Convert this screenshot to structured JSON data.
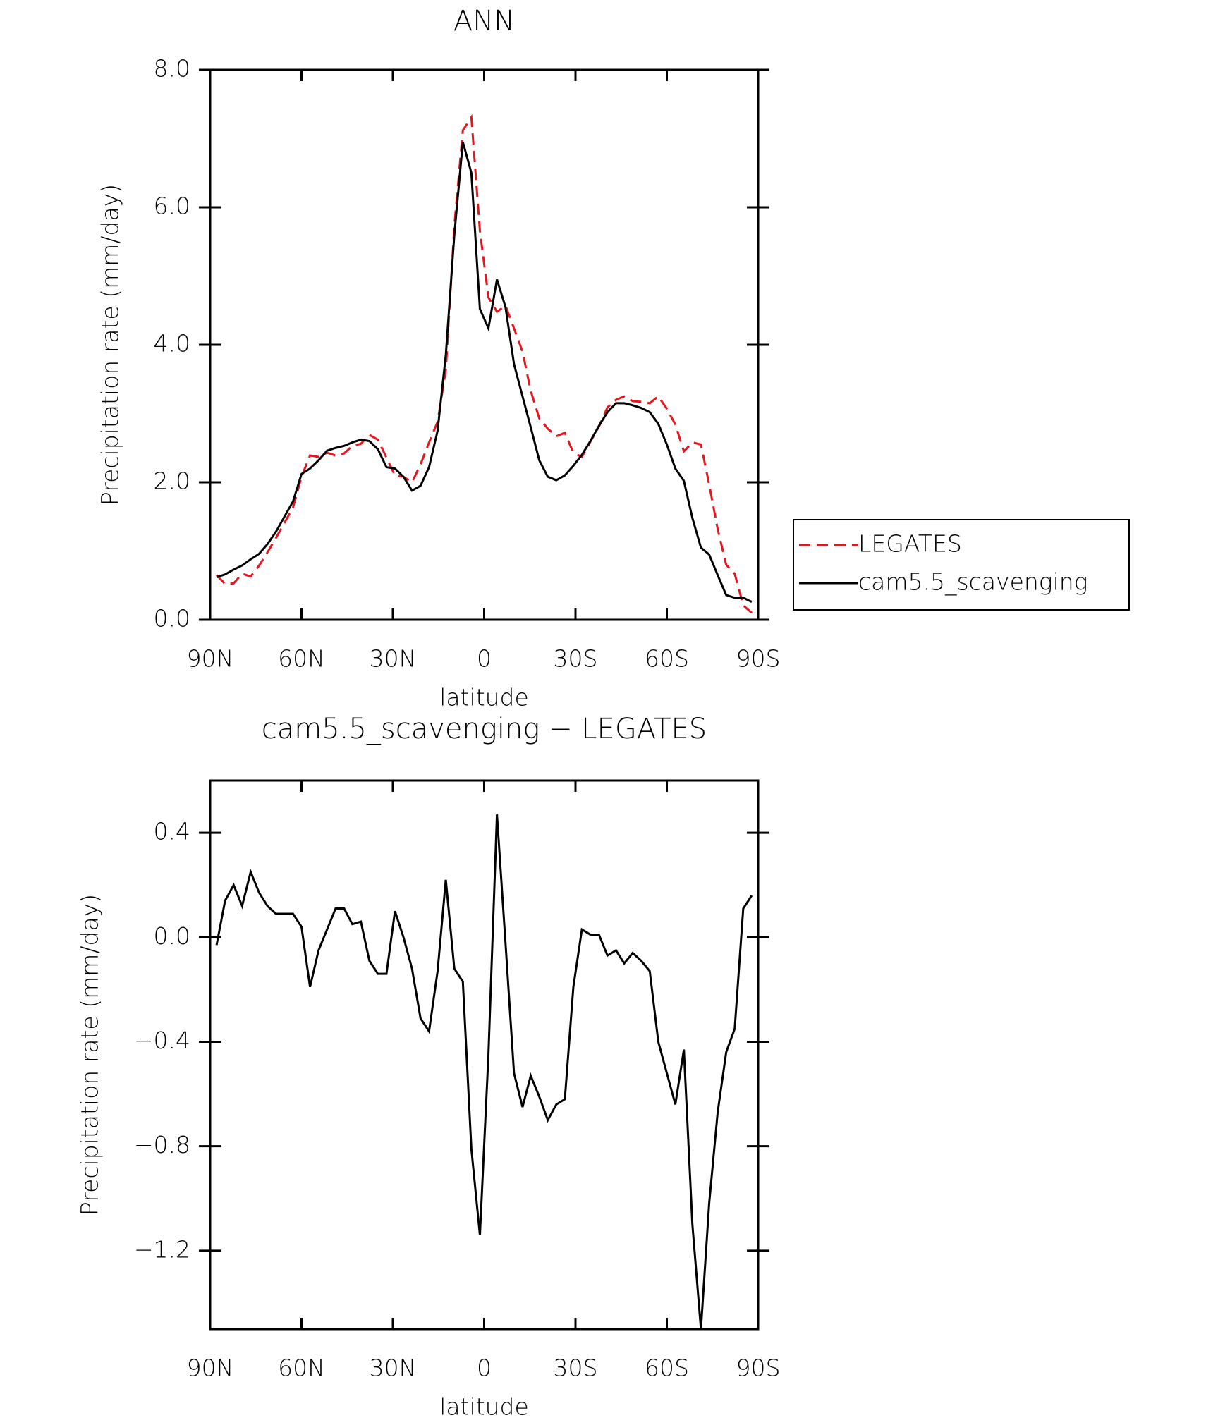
{
  "chart_data": [
    {
      "type": "line",
      "title": "ANN",
      "x_label": "latitude",
      "y_label": "Precipitation rate (mm/day)",
      "x": [
        87.9,
        85.1,
        82.3,
        79.5,
        76.7,
        73.9,
        71.2,
        68.4,
        65.6,
        62.8,
        60.0,
        57.2,
        54.4,
        51.6,
        48.8,
        46.0,
        43.3,
        40.5,
        37.7,
        34.9,
        32.1,
        29.3,
        26.5,
        23.7,
        20.9,
        18.1,
        15.3,
        12.6,
        9.8,
        7.0,
        4.2,
        1.4,
        -1.4,
        -4.2,
        -7.0,
        -9.8,
        -12.6,
        -15.3,
        -18.1,
        -20.9,
        -23.7,
        -26.5,
        -29.3,
        -32.1,
        -34.9,
        -37.7,
        -40.5,
        -43.3,
        -46.0,
        -48.8,
        -51.6,
        -54.4,
        -57.2,
        -60.0,
        -62.8,
        -65.6,
        -68.4,
        -71.2,
        -73.9,
        -76.7,
        -79.5,
        -82.3,
        -85.1,
        -87.9
      ],
      "xlim": [
        90,
        -90
      ],
      "xticks": [
        {
          "value": 90,
          "label": "90N"
        },
        {
          "value": 60,
          "label": "60N"
        },
        {
          "value": 30,
          "label": "30N"
        },
        0,
        {
          "value": -30,
          "label": "30S"
        },
        {
          "value": -60,
          "label": "60S"
        },
        {
          "value": -90,
          "label": "90S"
        }
      ],
      "ylim": [
        0,
        8
      ],
      "yticks": [
        {
          "value": 0,
          "label": "0.0"
        },
        {
          "value": 2,
          "label": "2.0"
        },
        {
          "value": 4,
          "label": "4.0"
        },
        {
          "value": 6,
          "label": "6.0"
        },
        {
          "value": 8,
          "label": "8.0"
        }
      ],
      "legend": "right",
      "series": [
        {
          "name": "LEGATES",
          "color": "#e8141e",
          "style": "dashed",
          "values": [
            0.65,
            0.52,
            0.53,
            0.67,
            0.63,
            0.79,
            0.98,
            1.19,
            1.41,
            1.63,
            2.08,
            2.39,
            2.37,
            2.43,
            2.39,
            2.42,
            2.53,
            2.56,
            2.69,
            2.62,
            2.36,
            2.1,
            2.08,
            2.0,
            2.26,
            2.58,
            2.88,
            3.63,
            5.72,
            7.12,
            7.31,
            5.66,
            4.69,
            4.48,
            4.57,
            4.24,
            3.9,
            3.33,
            2.93,
            2.78,
            2.67,
            2.72,
            2.43,
            2.37,
            2.59,
            2.81,
            3.09,
            3.2,
            3.25,
            3.18,
            3.17,
            3.15,
            3.25,
            3.07,
            2.84,
            2.45,
            2.58,
            2.55,
            1.97,
            1.32,
            0.8,
            0.67,
            0.21,
            0.1
          ]
        },
        {
          "name": "cam5.5_scavenging",
          "color": "#000000",
          "style": "solid",
          "values": [
            0.62,
            0.66,
            0.73,
            0.79,
            0.88,
            0.96,
            1.1,
            1.28,
            1.5,
            1.72,
            2.12,
            2.2,
            2.32,
            2.46,
            2.5,
            2.53,
            2.58,
            2.62,
            2.6,
            2.48,
            2.22,
            2.2,
            2.08,
            1.88,
            1.95,
            2.22,
            2.75,
            3.85,
            5.6,
            6.95,
            6.5,
            4.52,
            4.24,
            4.95,
            4.55,
            3.72,
            3.25,
            2.8,
            2.32,
            2.08,
            2.03,
            2.1,
            2.24,
            2.4,
            2.6,
            2.82,
            3.02,
            3.15,
            3.15,
            3.12,
            3.08,
            3.02,
            2.85,
            2.55,
            2.2,
            2.02,
            1.48,
            1.05,
            0.95,
            0.65,
            0.36,
            0.32,
            0.32,
            0.26
          ]
        }
      ]
    },
    {
      "type": "line",
      "title": "cam5.5_scavenging − LEGATES",
      "x_label": "latitude",
      "y_label": "Precipitation rate (mm/day)",
      "x": [
        87.9,
        85.1,
        82.3,
        79.5,
        76.7,
        73.9,
        71.2,
        68.4,
        65.6,
        62.8,
        60.0,
        57.2,
        54.4,
        51.6,
        48.8,
        46.0,
        43.3,
        40.5,
        37.7,
        34.9,
        32.1,
        29.3,
        26.5,
        23.7,
        20.9,
        18.1,
        15.3,
        12.6,
        9.8,
        7.0,
        4.2,
        1.4,
        -1.4,
        -4.2,
        -7.0,
        -9.8,
        -12.6,
        -15.3,
        -18.1,
        -20.9,
        -23.7,
        -26.5,
        -29.3,
        -32.1,
        -34.9,
        -37.7,
        -40.5,
        -43.3,
        -46.0,
        -48.8,
        -51.6,
        -54.4,
        -57.2,
        -60.0,
        -62.8,
        -65.6,
        -68.4,
        -71.2,
        -73.9,
        -76.7,
        -79.5,
        -82.3,
        -85.1,
        -87.9
      ],
      "xlim": [
        90,
        -90
      ],
      "xticks": [
        {
          "value": 90,
          "label": "90N"
        },
        {
          "value": 60,
          "label": "60N"
        },
        {
          "value": 30,
          "label": "30N"
        },
        0,
        {
          "value": -30,
          "label": "30S"
        },
        {
          "value": -60,
          "label": "60S"
        },
        {
          "value": -90,
          "label": "90S"
        }
      ],
      "ylim": [
        -1.5,
        0.6
      ],
      "yticks": [
        {
          "value": -1.2,
          "label": "−1.2"
        },
        {
          "value": -0.8,
          "label": "−0.8"
        },
        {
          "value": -0.4,
          "label": "−0.4"
        },
        {
          "value": 0,
          "label": "0.0"
        },
        {
          "value": 0.4,
          "label": "0.4"
        }
      ],
      "color": "#000000",
      "values": [
        -0.03,
        0.14,
        0.2,
        0.12,
        0.25,
        0.17,
        0.12,
        0.09,
        0.09,
        0.09,
        0.04,
        -0.19,
        -0.05,
        0.03,
        0.11,
        0.11,
        0.05,
        0.06,
        -0.09,
        -0.14,
        -0.14,
        0.1,
        0.0,
        -0.12,
        -0.31,
        -0.36,
        -0.13,
        0.22,
        -0.12,
        -0.17,
        -0.81,
        -1.14,
        -0.45,
        0.47,
        -0.02,
        -0.52,
        -0.65,
        -0.53,
        -0.61,
        -0.7,
        -0.64,
        -0.62,
        -0.19,
        0.03,
        0.01,
        0.01,
        -0.07,
        -0.05,
        -0.1,
        -0.06,
        -0.09,
        -0.13,
        -0.4,
        -0.52,
        -0.64,
        -0.43,
        -1.1,
        -1.5,
        -1.02,
        -0.67,
        -0.44,
        -0.35,
        0.11,
        0.16
      ]
    }
  ]
}
